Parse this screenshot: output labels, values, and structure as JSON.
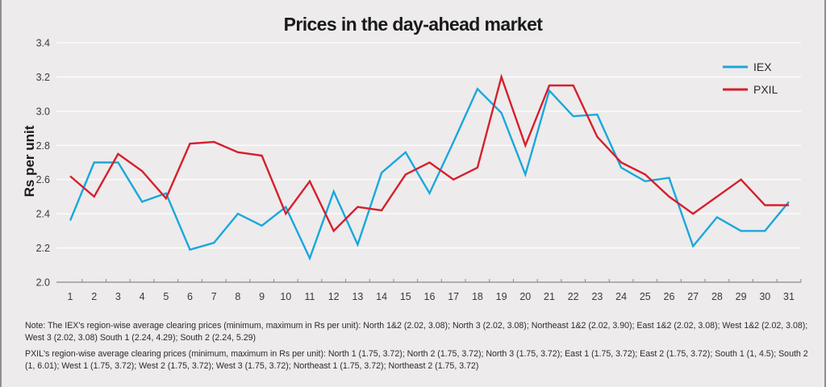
{
  "chart_data": {
    "type": "line",
    "title": "Prices in the day-ahead market",
    "xlabel": "",
    "ylabel": "Rs per unit",
    "x": [
      1,
      2,
      3,
      4,
      5,
      6,
      7,
      8,
      9,
      10,
      11,
      12,
      13,
      14,
      15,
      16,
      17,
      18,
      19,
      20,
      21,
      22,
      23,
      24,
      25,
      26,
      27,
      28,
      29,
      30,
      31
    ],
    "x_tick_labels": [
      "1",
      "2",
      "3",
      "4",
      "5",
      "6",
      "7",
      "8",
      "9",
      "10",
      "11",
      "12",
      "13",
      "14",
      "15",
      "16",
      "17",
      "18",
      "19",
      "20",
      "21",
      "22",
      "23",
      "24",
      "25",
      "26",
      "27",
      "28",
      "29",
      "30",
      "31"
    ],
    "ylim": [
      2.0,
      3.4
    ],
    "y_ticks": [
      2.0,
      2.2,
      2.4,
      2.6,
      2.8,
      3.0,
      3.2,
      3.4
    ],
    "y_tick_labels": [
      "2.0",
      "2.2",
      "2.4",
      "2.6",
      "2.8",
      "3.0",
      "3.2",
      "3.4"
    ],
    "grid": "horizontal",
    "legend_position": "top-right",
    "series": [
      {
        "name": "IEX",
        "color": "#1aa7dc",
        "values": [
          2.36,
          2.7,
          2.7,
          2.47,
          2.52,
          2.19,
          2.23,
          2.4,
          2.33,
          2.44,
          2.14,
          2.53,
          2.22,
          2.64,
          2.76,
          2.52,
          2.82,
          3.13,
          2.99,
          2.63,
          3.12,
          2.97,
          2.98,
          2.67,
          2.59,
          2.61,
          2.21,
          2.38,
          2.3,
          2.3,
          2.47
        ]
      },
      {
        "name": "PXIL",
        "color": "#d6202c",
        "values": [
          2.62,
          2.5,
          2.75,
          2.65,
          2.49,
          2.81,
          2.82,
          2.76,
          2.74,
          2.4,
          2.59,
          2.3,
          2.44,
          2.42,
          2.63,
          2.7,
          2.6,
          2.67,
          3.2,
          2.8,
          3.15,
          3.15,
          2.85,
          2.7,
          2.63,
          2.5,
          2.4,
          2.5,
          2.6,
          2.45,
          2.45
        ]
      }
    ]
  },
  "notes": {
    "iex": "Note: The IEX's region-wise average clearing prices (minimum, maximum in Rs per unit):  North 1&2 (2.02, 3.08); North 3 (2.02, 3.08); Northeast 1&2 (2.02, 3.90); East 1&2 (2.02, 3.08); West 1&2 (2.02, 3.08); West 3 (2.02, 3.08) South 1 (2.24, 4.29); South 2 (2.24, 5.29)",
    "pxil": "PXIL's region-wise average clearing prices (minimum, maximum in Rs per unit):  North 1 (1.75, 3.72); North 2 (1.75, 3.72); North 3 (1.75, 3.72); East 1 (1.75, 3.72); East 2 (1.75, 3.72); South 1 (1, 4.5); South 2 (1, 6.01); West 1 (1.75, 3.72); West 2 (1.75, 3.72); West 3 (1.75, 3.72); Northeast 1 (1.75, 3.72); Northeast 2 (1.75, 3.72)"
  }
}
